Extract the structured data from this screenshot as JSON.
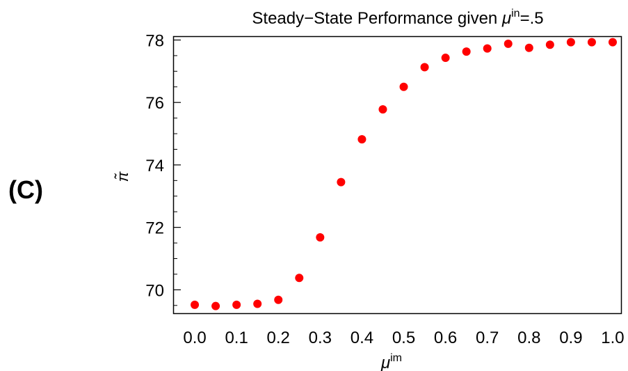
{
  "panel_label": "(C)",
  "chart_data": {
    "type": "scatter",
    "title": "Steady−State Performance given μ^in=.5",
    "title_parts": {
      "prefix": "Steady−State Performance given ",
      "symbol": "μ",
      "superscript": "in",
      "suffix": "=.5"
    },
    "xlabel": {
      "symbol": "μ",
      "superscript": "im"
    },
    "ylabel": "π̃",
    "xlim": [
      -0.05,
      1.02
    ],
    "ylim": [
      69.25,
      78.1
    ],
    "xticks": [
      "0.0",
      "0.1",
      "0.2",
      "0.3",
      "0.4",
      "0.5",
      "0.6",
      "0.7",
      "0.8",
      "0.9",
      "1.0"
    ],
    "yticks": [
      "70",
      "72",
      "74",
      "76",
      "78"
    ],
    "grid": false,
    "marker_color": "#ff0000",
    "series": [
      {
        "x": [
          0.0,
          0.05,
          0.1,
          0.15,
          0.2,
          0.25,
          0.3,
          0.35,
          0.4,
          0.45,
          0.5,
          0.55,
          0.6,
          0.65,
          0.7,
          0.75,
          0.8,
          0.85,
          0.9,
          0.95,
          1.0
        ],
        "y": [
          69.52,
          69.48,
          69.52,
          69.55,
          69.68,
          70.38,
          71.68,
          73.45,
          74.82,
          75.78,
          76.5,
          77.13,
          77.43,
          77.63,
          77.73,
          77.88,
          77.75,
          77.85,
          77.93,
          77.93,
          77.93
        ]
      }
    ]
  }
}
